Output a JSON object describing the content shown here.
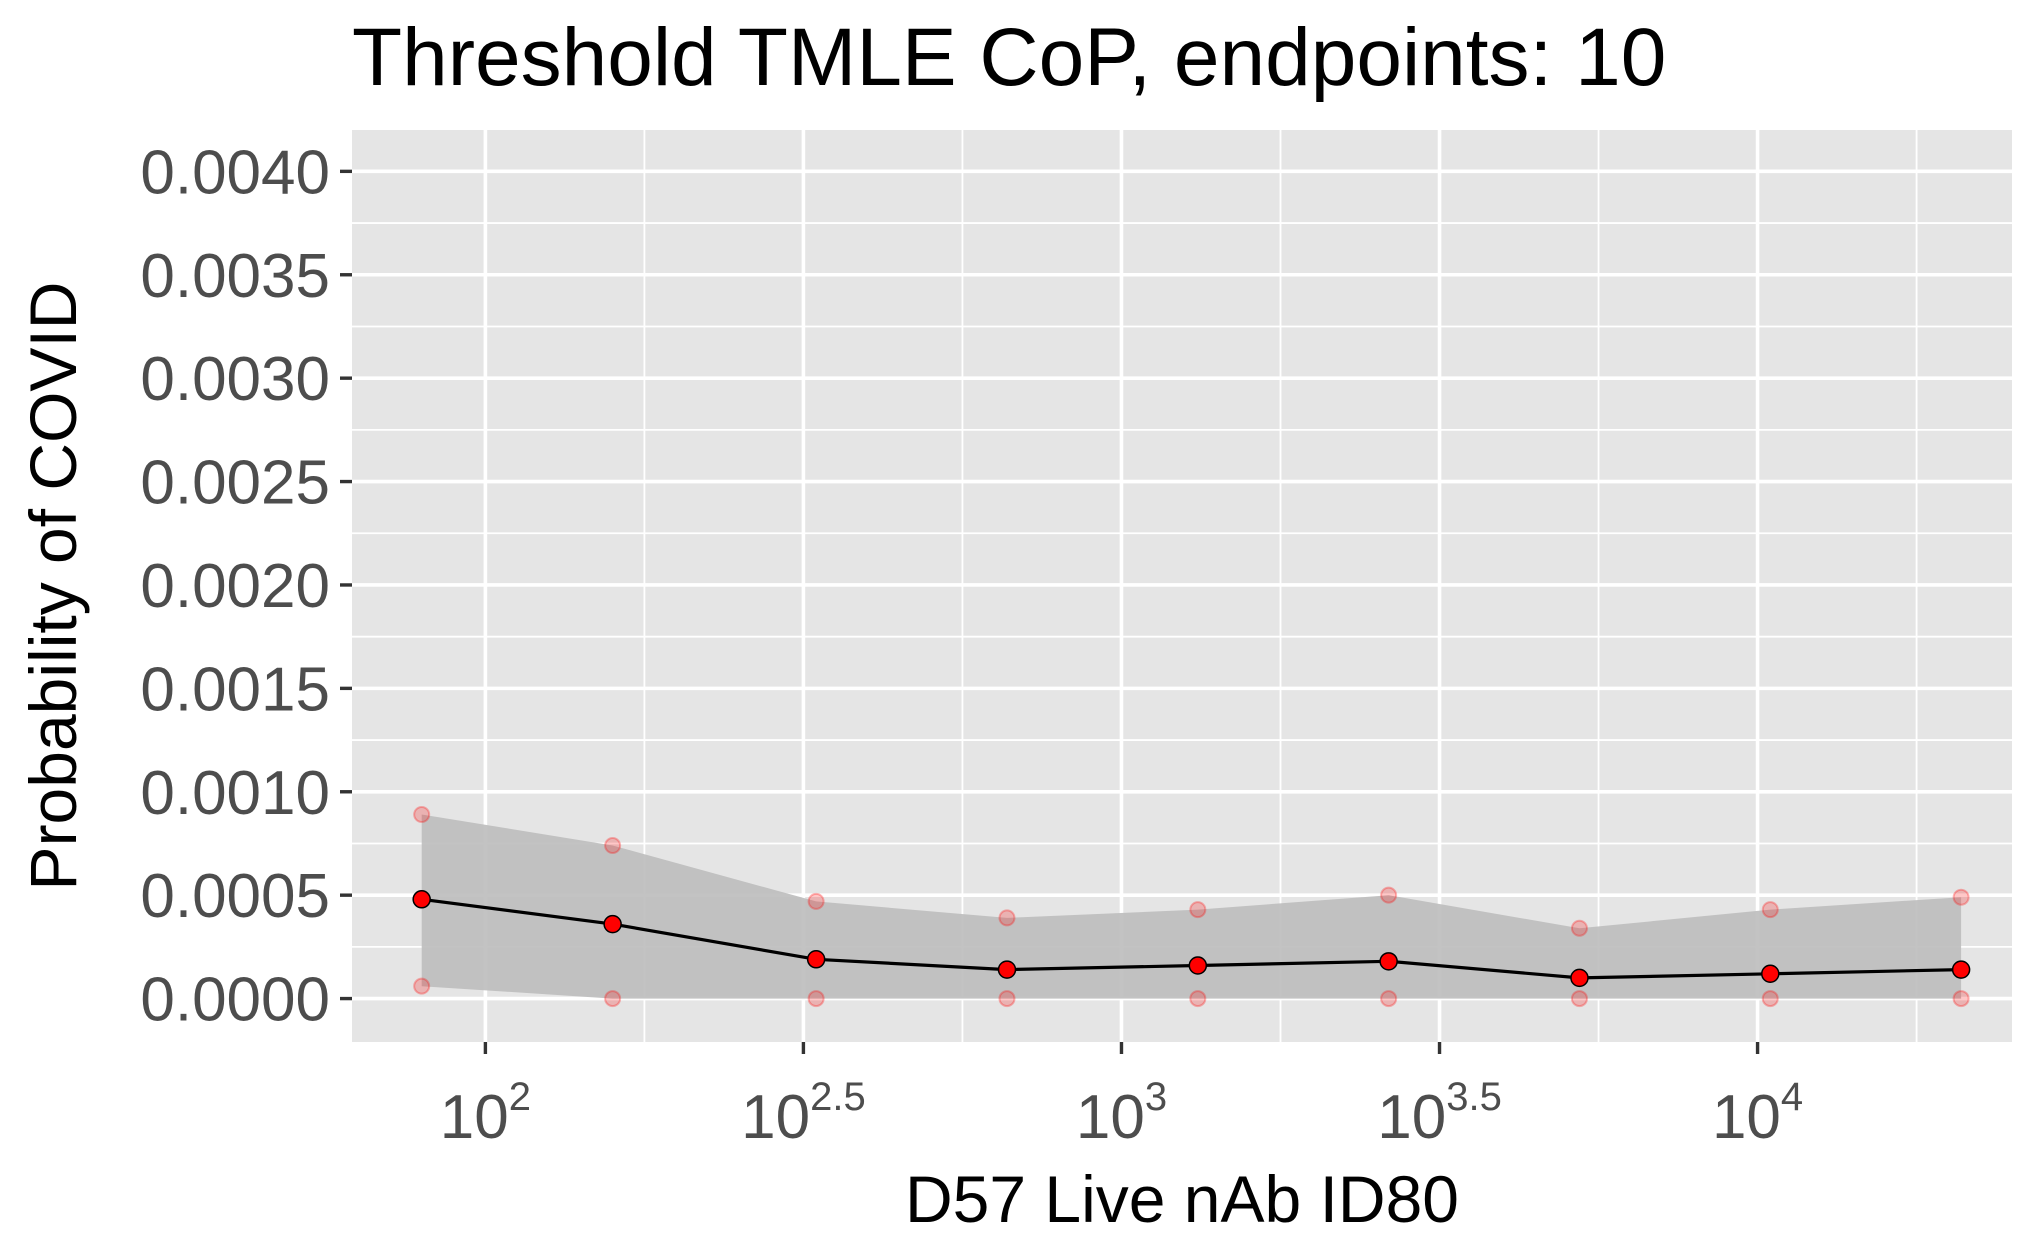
{
  "chart_data": {
    "type": "line",
    "title": "Threshold TMLE CoP, endpoints: 10",
    "xlabel": "D57 Live nAb ID80",
    "ylabel": "Probability of COVID",
    "x_scale": "log10",
    "xlim": [
      61.7,
      25119
    ],
    "ylim": [
      -0.00021,
      0.0042
    ],
    "grid": true,
    "panel_background": "#e5e5e5",
    "grid_color": "#ffffff",
    "x_ticks": [
      {
        "base": "10",
        "exp": "2",
        "value": 100
      },
      {
        "base": "10",
        "exp": "2.5",
        "value": 316.2
      },
      {
        "base": "10",
        "exp": "3",
        "value": 1000
      },
      {
        "base": "10",
        "exp": "3.5",
        "value": 3162.3
      },
      {
        "base": "10",
        "exp": "4",
        "value": 10000
      }
    ],
    "y_ticks": [
      "0.0000",
      "0.0005",
      "0.0010",
      "0.0015",
      "0.0020",
      "0.0025",
      "0.0030",
      "0.0035",
      "0.0040"
    ],
    "y_tick_values": [
      0,
      0.0005,
      0.001,
      0.0015,
      0.002,
      0.0025,
      0.003,
      0.0035,
      0.004
    ],
    "series": [
      {
        "color": "#ff0000",
        "ribbon_color": "#bdbdbd",
        "points": [
          {
            "x": 79.4,
            "y": 0.00048,
            "lower": 6e-05,
            "upper": 0.00089
          },
          {
            "x": 158.5,
            "y": 0.00036,
            "lower": 0.0,
            "upper": 0.00074
          },
          {
            "x": 331.1,
            "y": 0.00019,
            "lower": 0.0,
            "upper": 0.00047
          },
          {
            "x": 660.7,
            "y": 0.00014,
            "lower": 0.0,
            "upper": 0.00039
          },
          {
            "x": 1318.3,
            "y": 0.00016,
            "lower": 0.0,
            "upper": 0.00043
          },
          {
            "x": 2630.3,
            "y": 0.00018,
            "lower": 0.0,
            "upper": 0.0005
          },
          {
            "x": 5248.1,
            "y": 0.0001,
            "lower": 0.0,
            "upper": 0.00034
          },
          {
            "x": 10471,
            "y": 0.00012,
            "lower": 0.0,
            "upper": 0.00043
          },
          {
            "x": 20893,
            "y": 0.00014,
            "lower": 0.0,
            "upper": 0.00049
          }
        ]
      }
    ]
  }
}
